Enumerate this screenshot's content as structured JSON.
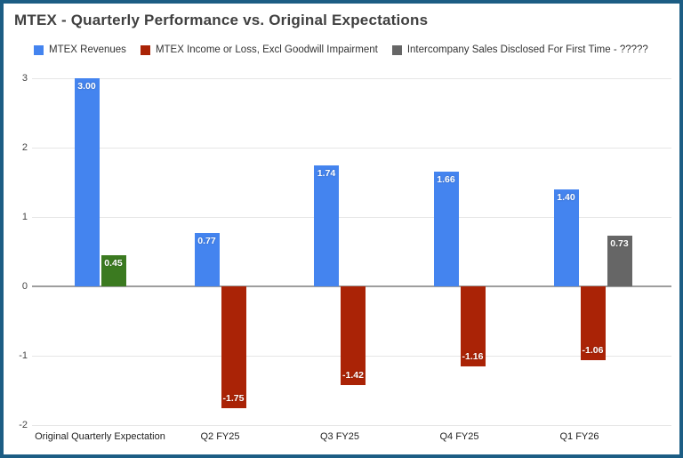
{
  "window": {
    "border_color": "#1c5d84",
    "background": "#ffffff"
  },
  "chart_data": {
    "type": "bar",
    "title": "MTEX - Quarterly Performance vs. Original Expectations",
    "categories": [
      "Original Quarterly Expectation",
      "Q2 FY25",
      "Q3 FY25",
      "Q4 FY25",
      "Q1 FY26"
    ],
    "series": [
      {
        "name": "MTEX Revenues",
        "color": "#4484ef",
        "values": [
          3.0,
          0.77,
          1.74,
          1.66,
          1.4
        ],
        "labels": [
          "3.00",
          "0.77",
          "1.74",
          "1.66",
          "1.40"
        ]
      },
      {
        "name": "MTEX Income or Loss, Excl Goodwill Impairment",
        "color": "#aa2306",
        "values": [
          0.45,
          -1.75,
          -1.42,
          -1.16,
          -1.06
        ],
        "labels": [
          "0.45",
          "-1.75",
          "-1.42",
          "-1.16",
          "-1.06"
        ],
        "bar_color_overrides": {
          "0": "#3b7a20"
        }
      },
      {
        "name": "Intercompany Sales Disclosed For First Time - ?????",
        "color": "#666666",
        "values": [
          null,
          null,
          null,
          null,
          0.73
        ],
        "labels": [
          null,
          null,
          null,
          null,
          "0.73"
        ]
      }
    ],
    "ylim": [
      -2,
      3
    ],
    "yticks": [
      3,
      2,
      1,
      0,
      -1,
      -2
    ],
    "grid": true,
    "legend_position": "top",
    "colors": {
      "gridline": "#e6e6e6",
      "zero_line": "#9e9e9e",
      "axis_text": "#444444",
      "category_text": "#222222",
      "value_label_text": "#ffffff",
      "title_text": "#404040",
      "legend_text": "#333333"
    }
  }
}
